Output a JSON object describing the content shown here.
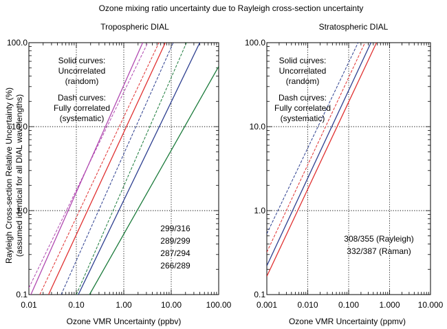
{
  "chart_data": [
    {
      "type": "line",
      "title": "Tropospheric DIAL",
      "xlabel": "Ozone VMR Uncertainty (ppbv)",
      "ylabel": "Rayleigh Cross-section Relative Uncertainty (%)",
      "ylabel2": "(assumed identical for all DIAL wavelengths)",
      "x_scale": "log",
      "y_scale": "log",
      "xlim": [
        0.01,
        100
      ],
      "ylim": [
        0.1,
        100
      ],
      "x_tick_labels": [
        "0.01",
        "0.10",
        "1.00",
        "10.00",
        "100.00"
      ],
      "y_tick_labels": [
        "0.1",
        "1.0",
        "10.0",
        "100.0"
      ],
      "grid": true,
      "annotations": [
        "Solid curves:",
        "Uncorrelated",
        "(random)",
        "Dash curves:",
        "Fully correlated",
        "(systematic)"
      ],
      "legend_placement": "bottom-right",
      "series": [
        {
          "name": "299/316",
          "color": "#1a7a3a",
          "style": "solid",
          "x": [
            0.19,
            100
          ],
          "y": [
            0.1,
            52
          ]
        },
        {
          "name": "299/316",
          "color": "#1a7a3a",
          "style": "dashed",
          "x": [
            0.1,
            21
          ],
          "y": [
            0.1,
            100
          ]
        },
        {
          "name": "289/299",
          "color": "#2c3e8f",
          "style": "solid",
          "x": [
            0.11,
            40
          ],
          "y": [
            0.1,
            100
          ]
        },
        {
          "name": "289/299",
          "color": "#2c3e8f",
          "style": "dashed",
          "x": [
            0.048,
            11
          ],
          "y": [
            0.1,
            100
          ]
        },
        {
          "name": "287/294",
          "color": "#e03030",
          "style": "solid",
          "x": [
            0.026,
            7.5
          ],
          "y": [
            0.1,
            100
          ]
        },
        {
          "name": "287/294",
          "color": "#e03030",
          "style": "dashed",
          "x": [
            0.017,
            5.5
          ],
          "y": [
            0.1,
            100
          ]
        },
        {
          "name": "266/289",
          "color": "#b048b0",
          "style": "solid",
          "x": [
            0.011,
            2.5
          ],
          "y": [
            0.1,
            100
          ]
        },
        {
          "name": "266/289",
          "color": "#b048b0",
          "style": "dashed",
          "x": [
            0.01,
            3.2
          ],
          "y": [
            0.12,
            100
          ]
        }
      ]
    },
    {
      "type": "line",
      "title": "Stratospheric DIAL",
      "xlabel": "Ozone VMR Uncertainty (ppmv)",
      "x_scale": "log",
      "y_scale": "log",
      "xlim": [
        0.001,
        10
      ],
      "ylim": [
        0.1,
        100
      ],
      "x_tick_labels": [
        "0.001",
        "0.010",
        "0.100",
        "1.000",
        "10.000"
      ],
      "y_tick_labels": [
        "0.1",
        "1.0",
        "10.0",
        "100.0"
      ],
      "grid": true,
      "annotations": [
        "Solid curves:",
        "Uncorrelated",
        "(random)",
        "Dash curves:",
        "Fully correlated",
        "(systematic)"
      ],
      "legend_placement": "bottom-right",
      "series": [
        {
          "name": "308/355 (Rayleigh)",
          "color": "#2c3e8f",
          "style": "solid",
          "x": [
            0.001,
            0.35
          ],
          "y": [
            0.22,
            100
          ]
        },
        {
          "name": "308/355 (Rayleigh)",
          "color": "#2c3e8f",
          "style": "dashed",
          "x": [
            0.001,
            0.17
          ],
          "y": [
            0.53,
            100
          ]
        },
        {
          "name": "332/387 (Raman)",
          "color": "#e03030",
          "style": "solid",
          "x": [
            0.001,
            0.48
          ],
          "y": [
            0.165,
            100
          ]
        },
        {
          "name": "332/387 (Raman)",
          "color": "#e03030",
          "style": "dashed",
          "x": [
            0.001,
            0.25
          ],
          "y": [
            0.32,
            100
          ]
        }
      ]
    }
  ],
  "figure": {
    "main_title": "Ozone mixing ratio uncertainty due to Rayleigh cross-section uncertainty"
  },
  "legend_left": [
    {
      "label": "299/316",
      "color": "#1a7a3a"
    },
    {
      "label": "289/299",
      "color": "#2c3e8f"
    },
    {
      "label": "287/294",
      "color": "#e03030"
    },
    {
      "label": "266/289",
      "color": "#b048b0"
    }
  ],
  "legend_right": [
    {
      "label": "308/355 (Rayleigh)",
      "color": "#2c3e8f"
    },
    {
      "label": "332/387 (Raman)",
      "color": "#e03030"
    }
  ]
}
